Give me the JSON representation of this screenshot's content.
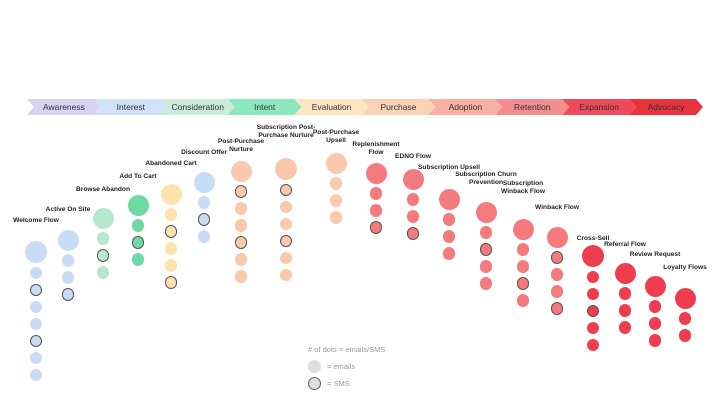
{
  "stages": [
    {
      "label": "Awareness",
      "color": "#d9d2f5"
    },
    {
      "label": "Interest",
      "color": "#cfe2f8"
    },
    {
      "label": "Consideration",
      "color": "#c9ecd9"
    },
    {
      "label": "Intent",
      "color": "#8ee8bf"
    },
    {
      "label": "Evaluation",
      "color": "#fde6c2"
    },
    {
      "label": "Purchase",
      "color": "#fbd2b5"
    },
    {
      "label": "Adoption",
      "color": "#f6b0a4"
    },
    {
      "label": "Retention",
      "color": "#f38d8f"
    },
    {
      "label": "Expansion",
      "color": "#ef4a5b"
    },
    {
      "label": "Advocacy",
      "color": "#e8323e"
    }
  ],
  "flows": [
    {
      "name": "Welcome Flow",
      "color": "#c9dcf6",
      "sms": [
        2,
        5
      ]
    },
    {
      "name": "Active On Site",
      "color": "#c9dcf6",
      "sms": [
        3
      ]
    },
    {
      "name": "Browse Abandon",
      "color": "#b7e8cf",
      "sms": [
        2
      ]
    },
    {
      "name": "Add To Cart",
      "color": "#6fd9a4",
      "sms": [
        2
      ]
    },
    {
      "name": "Abandoned Cart",
      "color": "#fde2b0",
      "sms": [
        2,
        5
      ]
    },
    {
      "name": "Discount Offer",
      "color": "#c9dcf6",
      "sms": [
        2
      ]
    },
    {
      "name": "Post-Purchase Nurture",
      "color": "#fbc7ad",
      "sms": [
        1,
        4
      ]
    },
    {
      "name": "Subscription Post-Purchase Nurture",
      "color": "#fbc7ad",
      "sms": [
        1,
        4
      ]
    },
    {
      "name": "Post-Purchase Upsell",
      "color": "#fbc7ad",
      "sms": []
    },
    {
      "name": "Replenishment Flow",
      "color": "#f47a7d",
      "sms": [
        3
      ]
    },
    {
      "name": "EDNO Flow",
      "color": "#f47a7d",
      "sms": [
        3
      ]
    },
    {
      "name": "Subscription Upsell",
      "color": "#f47a7d",
      "sms": []
    },
    {
      "name": "Subscription Churn Prevention",
      "color": "#f47a7d",
      "sms": [
        2
      ]
    },
    {
      "name": "Subscription Winback Flow",
      "color": "#f47a7d",
      "sms": [
        3
      ]
    },
    {
      "name": "Winback Flow",
      "color": "#f47a7d",
      "sms": [
        1,
        4
      ]
    },
    {
      "name": "Cross-Sell",
      "color": "#ef3d4f",
      "sms": [
        3,
        6
      ]
    },
    {
      "name": "Referral Flow",
      "color": "#ef3d4f",
      "sms": []
    },
    {
      "name": "Review Request",
      "color": "#ef3d4f",
      "sms": []
    },
    {
      "name": "Loyalty Flows",
      "color": "#ef3d4f",
      "sms": []
    }
  ],
  "legend": {
    "title": "# of dots = emails/SMS",
    "emails": "= emails",
    "sms": "= SMS"
  }
}
